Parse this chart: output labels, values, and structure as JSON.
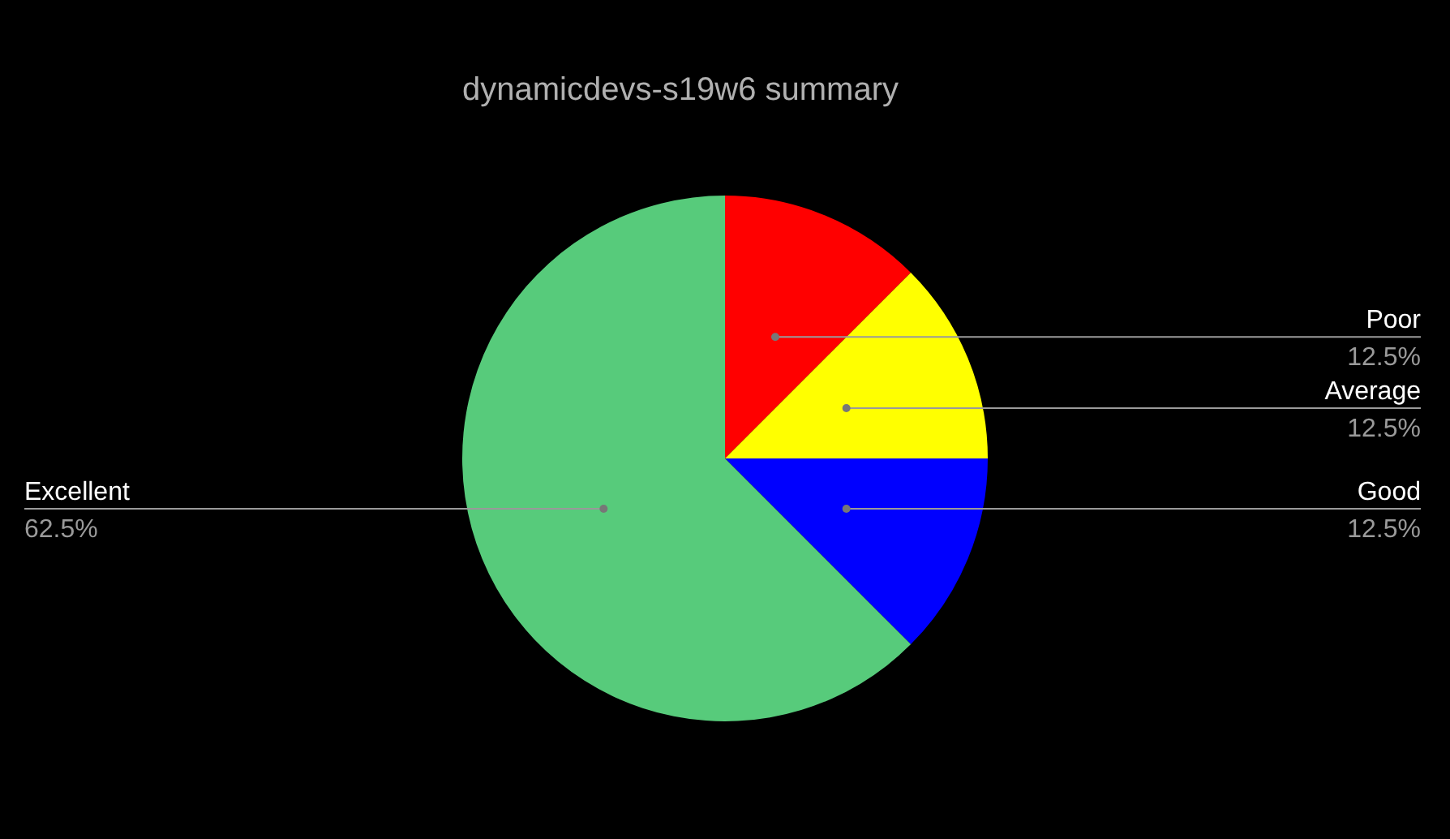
{
  "chart_data": {
    "type": "pie",
    "title": "dynamicdevs-s19w6 summary",
    "categories": [
      "Poor",
      "Average",
      "Good",
      "Excellent"
    ],
    "values": [
      12.5,
      12.5,
      12.5,
      62.5
    ],
    "colors": [
      "#ff0000",
      "#ffff00",
      "#0000ff",
      "#57cb7b"
    ],
    "value_labels": [
      "12.5%",
      "12.5%",
      "12.5%",
      "62.5%"
    ],
    "legend": false
  }
}
